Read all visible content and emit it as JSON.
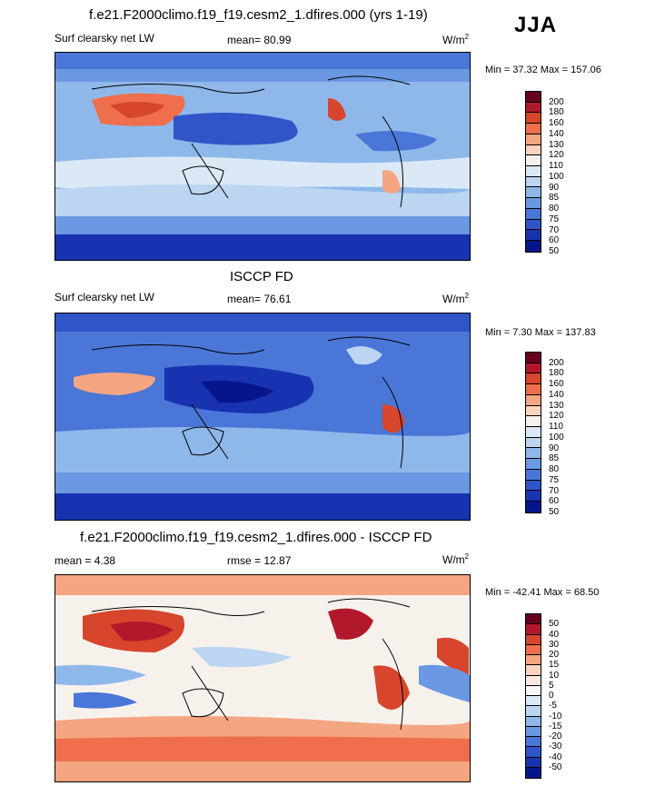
{
  "season": "JJA",
  "panels": [
    {
      "title": "f.e21.F2000climo.f19_f19.cesm2_1.dfires.000 (yrs 1-19)",
      "left_label": "Surf clearsky net LW",
      "center_label": "mean=  80.99",
      "units": "W/m",
      "units_exp": "2",
      "minmax": "Min =  37.32 Max = 157.06",
      "colorbar": {
        "colors": [
          "#67001f",
          "#b2182b",
          "#d6452c",
          "#ef6f4c",
          "#f4a582",
          "#fbd3bd",
          "#f7f1ec",
          "#dbe8f6",
          "#bcd5f0",
          "#8fb8ea",
          "#6a98e2",
          "#4a76d8",
          "#2f55c8",
          "#1833b0",
          "#06168a"
        ],
        "labels": [
          "200",
          "180",
          "160",
          "140",
          "130",
          "120",
          "110",
          "100",
          "90",
          "85",
          "80",
          "75",
          "70",
          "60",
          "50"
        ]
      },
      "chart_data": {
        "type": "heatmap",
        "title": "f.e21.F2000climo.f19_f19.cesm2_1.dfires.000 (yrs 1-19)",
        "variable": "Surf clearsky net LW",
        "mean": 80.99,
        "min": 37.32,
        "max": 157.06,
        "units": "W/m2"
      }
    },
    {
      "title": "ISCCP FD",
      "left_label": "Surf clearsky net LW",
      "center_label": "mean=  76.61",
      "units": "W/m",
      "units_exp": "2",
      "minmax": "Min =   7.30 Max = 137.83",
      "colorbar": {
        "colors": [
          "#67001f",
          "#b2182b",
          "#d6452c",
          "#ef6f4c",
          "#f4a582",
          "#fbd3bd",
          "#f7f1ec",
          "#dbe8f6",
          "#bcd5f0",
          "#8fb8ea",
          "#6a98e2",
          "#4a76d8",
          "#2f55c8",
          "#1833b0",
          "#06168a"
        ],
        "labels": [
          "200",
          "180",
          "160",
          "140",
          "130",
          "120",
          "110",
          "100",
          "90",
          "85",
          "80",
          "75",
          "70",
          "60",
          "50"
        ]
      },
      "chart_data": {
        "type": "heatmap",
        "title": "ISCCP FD",
        "variable": "Surf clearsky net LW",
        "mean": 76.61,
        "min": 7.3,
        "max": 137.83,
        "units": "W/m2"
      }
    },
    {
      "title": "f.e21.F2000climo.f19_f19.cesm2_1.dfires.000 - ISCCP FD",
      "left_label": "mean =   4.38",
      "center_label": "rmse =  12.87",
      "units": "W/m",
      "units_exp": "2",
      "minmax": "Min = -42.41 Max =  68.50",
      "colorbar": {
        "colors": [
          "#67001f",
          "#b2182b",
          "#d6452c",
          "#ef6f4c",
          "#f4a582",
          "#fbd3bd",
          "#fbe9df",
          "#f7f7f7",
          "#dbe8f6",
          "#bcd5f0",
          "#8fb8ea",
          "#6a98e2",
          "#4a76d8",
          "#2f55c8",
          "#1833b0",
          "#06168a"
        ],
        "labels": [
          "50",
          "40",
          "30",
          "20",
          "15",
          "10",
          "5",
          "0",
          "-5",
          "-10",
          "-15",
          "-20",
          "-30",
          "-40",
          "-50"
        ]
      },
      "chart_data": {
        "type": "heatmap",
        "title": "f.e21.F2000climo.f19_f19.cesm2_1.dfires.000 - ISCCP FD",
        "mean": 4.38,
        "rmse": 12.87,
        "min": -42.41,
        "max": 68.5,
        "units": "W/m2"
      }
    }
  ]
}
